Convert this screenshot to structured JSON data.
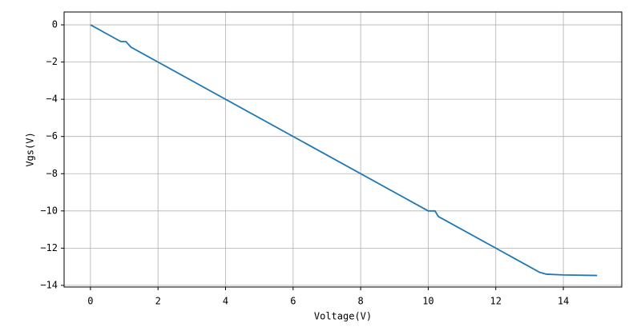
{
  "chart_data": {
    "type": "line",
    "x_label": "Voltage(V)",
    "y_label": "Vgs(V)",
    "series": [
      {
        "name": "Vgs",
        "color": "#1f77b4",
        "x": [
          0,
          0.9,
          1.05,
          1.2,
          10,
          10.2,
          10.3,
          13.3,
          13.5,
          14,
          15
        ],
        "values": [
          0,
          -0.9,
          -0.9,
          -1.2,
          -10,
          -10,
          -10.3,
          -13.3,
          -13.4,
          -13.44,
          -13.47
        ]
      }
    ],
    "xlim": [
      -0.78,
      15.73
    ],
    "ylim": [
      -14.09,
      0.69
    ],
    "xticks": [
      0,
      2,
      4,
      6,
      8,
      10,
      12,
      14
    ],
    "yticks": [
      0,
      {
        "value": -2,
        "label": "−2"
      },
      {
        "value": -4,
        "label": "−4"
      },
      {
        "value": -6,
        "label": "−6"
      },
      {
        "value": -8,
        "label": "−8"
      },
      {
        "value": -10,
        "label": "−10"
      },
      {
        "value": -12,
        "label": "−12"
      },
      {
        "value": -14,
        "label": "−14"
      }
    ],
    "grid": true
  }
}
